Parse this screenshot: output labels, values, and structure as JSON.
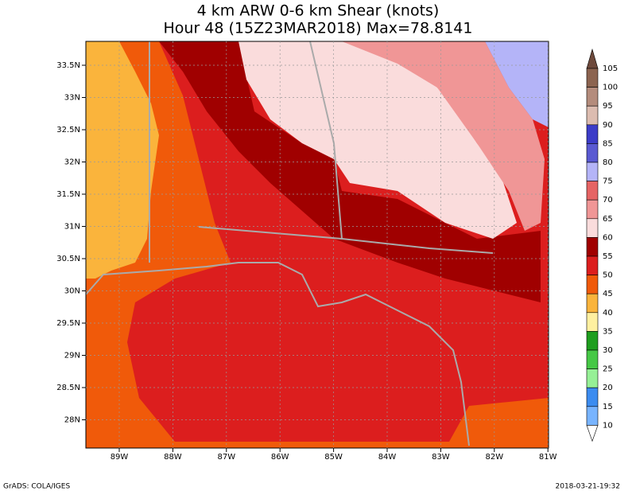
{
  "title": [
    "4 km ARW 0-6 km Shear (knots)",
    "Hour 48 (15Z23MAR2018) Max=78.8141"
  ],
  "map": {
    "lat_labels": [
      "33.5N",
      "33N",
      "32.5N",
      "32N",
      "31.5N",
      "31N",
      "30.5N",
      "30N",
      "29.5N",
      "29N",
      "28.5N",
      "28N"
    ],
    "lon_labels": [
      "89W",
      "88W",
      "87W",
      "86W",
      "85W",
      "84W",
      "83W",
      "82W",
      "81W"
    ]
  },
  "colorbar": {
    "levels": [
      105,
      100,
      95,
      90,
      85,
      80,
      75,
      70,
      65,
      60,
      55,
      50,
      45,
      40,
      35,
      30,
      25,
      20,
      15,
      10
    ],
    "colors": [
      "#6e4a3c",
      "#8c6450",
      "#b48c7c",
      "#dcbcb0",
      "#3c3cc8",
      "#5a5ad2",
      "#b4b4f8",
      "#e66464",
      "#f09696",
      "#fadcdc",
      "#a00000",
      "#dc1e1e",
      "#f05a0a",
      "#fab43c",
      "#fff0a0",
      "#1e9e1e",
      "#46c846",
      "#96f096",
      "#3c8cf0",
      "#78b4ff",
      "#ffffff"
    ]
  },
  "footer": {
    "left": "GrADS: COLA/IGES",
    "right": "2018-03-21-19:32"
  }
}
